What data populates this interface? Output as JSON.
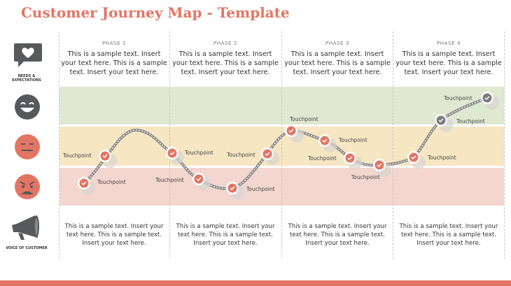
{
  "title": "Customer Journey Map - Template",
  "colors": {
    "accent": "#e27564",
    "positive_band": "#dfe8d1",
    "neutral_band": "#f6e6c2",
    "negative_band": "#f3d6cf",
    "icon_gray": "#58595b"
  },
  "side": {
    "needs_label": "NEEDS & EXPECTATIONS",
    "needs_icon": "heart-speech-bubble-icon",
    "happy_icon": "happy-face-icon",
    "neutral_icon": "neutral-face-icon",
    "angry_icon": "angry-face-icon",
    "voice_label": "VOICE OF CUSTOMER",
    "voice_icon": "megaphone-icon"
  },
  "phases": [
    {
      "label": "PHASE 1",
      "top_text": "This is a sample text. Insert your text here. This is a sample text. Insert your text here.",
      "bottom_text": "This is a sample text. Insert your text here. This is a sample text. Insert your text here."
    },
    {
      "label": "PHASE 2",
      "top_text": "This is a sample text. Insert your text here. This is a sample text. Insert your text here.",
      "bottom_text": "This is a sample text. Insert your text here. This is a sample text. Insert your text here."
    },
    {
      "label": "PHASE 3",
      "top_text": "This is a sample text. Insert your text here. This is a sample text. Insert your text here.",
      "bottom_text": "This is a sample text. Insert your text here. This is a sample text. Insert your text here."
    },
    {
      "label": "PHASE 4",
      "top_text": "This is a sample text. Insert your text here. This is a sample text. Insert your text here.",
      "bottom_text": "This is a sample text. Insert your text here. This is a sample text. Insert your text here."
    }
  ],
  "touchpoint_label": "Touchpoint",
  "touchpoint_icon": "check-icon"
}
